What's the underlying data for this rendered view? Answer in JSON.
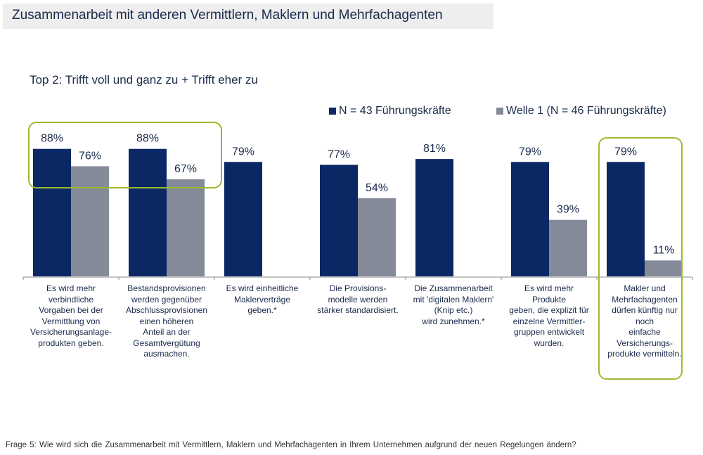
{
  "header": {
    "title": "Zusammenarbeit mit anderen Vermittlern, Maklern und Mehrfachagenten",
    "subtitle": "Top 2: Trifft voll und ganz zu + Trifft eher zu"
  },
  "footnote": "Frage 5: Wie wird sich die Zusammenarbeit  mit Vermittlern,  Maklern und  Mehrfachagenten  in Ihrem  Unternehmen  aufgrund  der neuen  Regelungen  ändern?",
  "colors": {
    "series1": "#0b2865",
    "series2": "#858a99",
    "highlight": "#9bbb2e"
  },
  "chart_data": {
    "type": "bar",
    "title": "Top 2: Trifft voll und ganz zu + Trifft eher zu",
    "xlabel": "",
    "ylabel": "",
    "ylim": [
      0,
      100
    ],
    "grid": false,
    "legend_position": "top-right",
    "categories": [
      "Es wird mehr\nverbindliche\nVorgaben bei der\nVermittlung von\nVersicherungsanlage-\nprodukten geben.",
      "Bestandsprovisionen\nwerden gegenüber\nAbschlussprovisionen\neinen höheren\nAnteil an der\nGesamtvergütung\nausmachen.",
      "Es wird einheitliche\nMaklerverträge\ngeben.*",
      "Die Provisions-\nmodelle werden\nstärker standardisiert.",
      "Die Zusammenarbeit\nmit 'digitalen Maklern'\n(Knip etc.)\nwird zunehmen.*",
      "Es wird mehr\nProdukte\ngeben, die explizit für\neinzelne Vermittler-\ngruppen entwickelt\nwurden.",
      "Makler und\nMehrfachagenten\ndürfen künftig nur\nnoch\neinfache\nVersicherungs-\nprodukte vermitteln."
    ],
    "series": [
      {
        "name": "N = 43 Führungskräfte",
        "values": [
          88,
          88,
          79,
          77,
          81,
          79,
          79
        ],
        "labels": [
          "88%",
          "88%",
          "79%",
          "77%",
          "81%",
          "79%",
          "79%"
        ]
      },
      {
        "name": "Welle 1 (N = 46 Führungskräfte)",
        "values": [
          76,
          67,
          null,
          54,
          null,
          39,
          11
        ],
        "labels": [
          "76%",
          "67%",
          "",
          "54%",
          "",
          "39%",
          "11%"
        ]
      }
    ],
    "highlighted_categories": [
      [
        0,
        1
      ],
      [
        6
      ]
    ]
  }
}
